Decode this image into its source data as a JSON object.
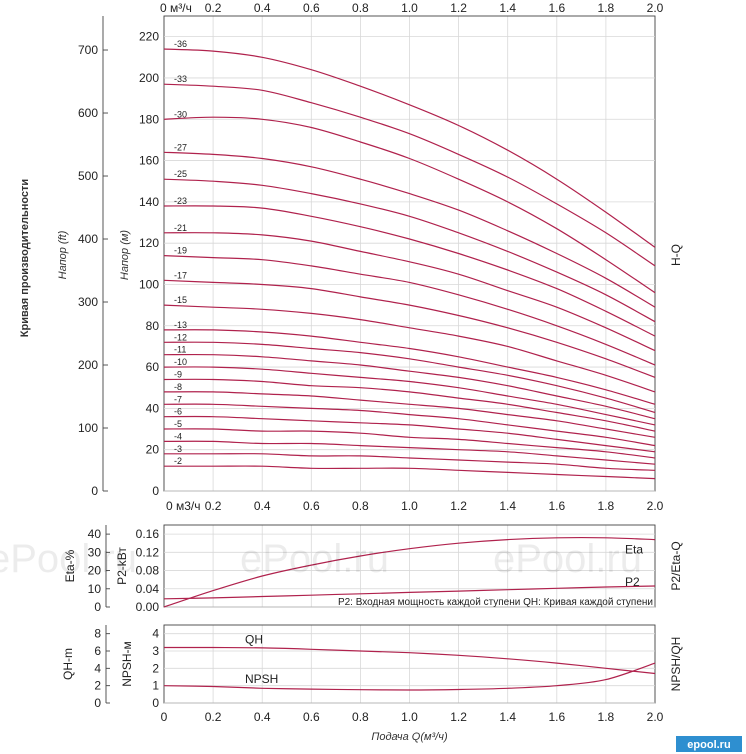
{
  "watermark": {
    "text": "ePool.ru",
    "logo": "epool.ru"
  },
  "chart_data": [
    {
      "type": "line",
      "name": "H-Q",
      "side_label": "H-Q",
      "xlim": [
        0,
        2.0
      ],
      "x_ticks": [
        "0.2",
        "0.4",
        "0.6",
        "0.8",
        "1.0",
        "1.2",
        "1.4",
        "1.6",
        "1.8",
        "2.0"
      ],
      "top_axis_zero_label": "0 м³/ч",
      "bottom_axis_zero_label": "0 м3/ч",
      "ylim": [
        0,
        230
      ],
      "y_ticks": [
        0,
        20,
        40,
        60,
        80,
        100,
        120,
        140,
        160,
        180,
        200,
        220
      ],
      "ylabel": "Напор (м)",
      "ylim_ft": [
        0,
        754
      ],
      "y_ticks_ft": [
        0,
        100,
        200,
        300,
        400,
        500,
        600,
        700
      ],
      "ylabel_ft": "Напор (ft)",
      "left_title": "Кривая производительности",
      "x": [
        0,
        0.2,
        0.4,
        0.6,
        0.8,
        1.0,
        1.2,
        1.4,
        1.6,
        1.8,
        2.0
      ],
      "series": [
        {
          "name": "-36",
          "values": [
            214,
            213,
            210,
            204,
            196,
            187,
            177,
            165,
            151,
            135,
            118
          ]
        },
        {
          "name": "-33",
          "values": [
            197,
            196,
            194,
            188,
            181,
            173,
            163,
            152,
            139,
            125,
            109
          ]
        },
        {
          "name": "-30",
          "values": [
            180,
            181,
            180,
            176,
            169,
            161,
            151,
            140,
            127,
            112,
            96
          ]
        },
        {
          "name": "-27",
          "values": [
            164,
            163,
            161,
            157,
            151,
            144,
            136,
            126,
            115,
            103,
            89
          ]
        },
        {
          "name": "-25",
          "values": [
            151,
            150,
            148,
            144,
            139,
            133,
            125,
            116,
            106,
            95,
            82
          ]
        },
        {
          "name": "-23",
          "values": [
            138,
            138,
            137,
            133,
            128,
            122,
            115,
            107,
            98,
            87,
            75
          ]
        },
        {
          "name": "-21",
          "values": [
            125,
            125,
            124,
            121,
            116,
            111,
            105,
            97,
            89,
            79,
            68
          ]
        },
        {
          "name": "-19",
          "values": [
            114,
            113,
            112,
            109,
            105,
            101,
            95,
            88,
            80,
            71,
            61
          ]
        },
        {
          "name": "-17",
          "values": [
            102,
            101,
            100,
            98,
            94,
            90,
            85,
            79,
            72,
            64,
            55
          ]
        },
        {
          "name": "-15",
          "values": [
            90,
            89,
            88,
            86,
            83,
            79,
            75,
            70,
            63,
            56,
            48
          ]
        },
        {
          "name": "-13",
          "values": [
            78,
            78,
            77,
            75,
            72,
            69,
            65,
            60,
            55,
            49,
            42
          ]
        },
        {
          "name": "-12",
          "values": [
            72,
            72,
            71,
            69,
            67,
            64,
            60,
            56,
            51,
            45,
            38
          ]
        },
        {
          "name": "-11",
          "values": [
            66,
            66,
            65,
            63,
            61,
            58,
            55,
            51,
            46,
            41,
            35
          ]
        },
        {
          "name": "-10",
          "values": [
            60,
            60,
            59,
            57,
            55,
            53,
            50,
            46,
            42,
            37,
            32
          ]
        },
        {
          "name": "-9",
          "values": [
            54,
            54,
            53,
            51,
            50,
            48,
            45,
            42,
            38,
            34,
            29
          ]
        },
        {
          "name": "-8",
          "values": [
            48,
            48,
            47,
            46,
            44,
            42,
            40,
            37,
            34,
            30,
            26
          ]
        },
        {
          "name": "-7",
          "values": [
            42,
            42,
            41,
            40,
            39,
            37,
            35,
            32,
            29,
            26,
            22
          ]
        },
        {
          "name": "-6",
          "values": [
            36,
            36,
            35,
            34,
            33,
            32,
            30,
            28,
            25,
            22,
            19
          ]
        },
        {
          "name": "-5",
          "values": [
            30,
            30,
            29,
            29,
            28,
            26,
            25,
            23,
            21,
            19,
            16
          ]
        },
        {
          "name": "-4",
          "values": [
            24,
            24,
            23,
            23,
            22,
            21,
            20,
            19,
            17,
            15,
            13
          ]
        },
        {
          "name": "-3",
          "values": [
            18,
            18,
            18,
            17,
            17,
            16,
            15,
            14,
            13,
            11,
            10
          ]
        },
        {
          "name": "-2",
          "values": [
            12,
            12,
            12,
            11,
            11,
            11,
            10,
            9,
            8,
            7,
            6
          ]
        }
      ]
    },
    {
      "type": "line",
      "name": "P2/Eta-Q",
      "side_label": "P2/Eta-Q",
      "xlim": [
        0,
        2.0
      ],
      "y_ticks_p2": [
        "0.00",
        "0.04",
        "0.08",
        "0.12",
        "0.16"
      ],
      "ylim_p2": [
        0,
        0.18
      ],
      "ylabel_p2": "P2-kВт",
      "y_ticks_eta": [
        0,
        10,
        20,
        30,
        40
      ],
      "ylim_eta": [
        0,
        45
      ],
      "ylabel_eta": "Eta-%",
      "note": "P2: Входная мощность каждой ступени QH: Кривая каждой ступени",
      "x": [
        0,
        0.2,
        0.4,
        0.6,
        0.8,
        1.0,
        1.2,
        1.4,
        1.6,
        1.8,
        2.0
      ],
      "series": [
        {
          "name": "Eta",
          "axis": "eta",
          "values": [
            0,
            9,
            17,
            23,
            28,
            32,
            35,
            37,
            38,
            38,
            37
          ]
        },
        {
          "name": "P2",
          "axis": "p2",
          "values": [
            0.018,
            0.02,
            0.023,
            0.026,
            0.029,
            0.032,
            0.035,
            0.038,
            0.041,
            0.044,
            0.046
          ]
        }
      ]
    },
    {
      "type": "line",
      "name": "NPSH/QH",
      "side_label": "NPSH/QH",
      "xlim": [
        0,
        2.0
      ],
      "x_ticks": [
        "0",
        "0.2",
        "0.4",
        "0.6",
        "0.8",
        "1.0",
        "1.2",
        "1.4",
        "1.6",
        "1.8",
        "2.0"
      ],
      "xlabel": "Подача Q(м³/ч)",
      "y_ticks_npsh": [
        0,
        1,
        2,
        3,
        4
      ],
      "ylim_npsh": [
        0,
        4.5
      ],
      "ylabel_npsh": "NPSH-м",
      "y_ticks_qh": [
        0,
        2,
        4,
        6,
        8
      ],
      "ylim_qh": [
        0,
        9
      ],
      "ylabel_qh": "QH-m",
      "x": [
        0,
        0.2,
        0.4,
        0.6,
        0.8,
        1.0,
        1.2,
        1.4,
        1.6,
        1.8,
        2.0
      ],
      "series": [
        {
          "name": "QH",
          "axis": "npsh",
          "values": [
            3.2,
            3.2,
            3.18,
            3.1,
            3.0,
            2.9,
            2.75,
            2.55,
            2.3,
            2.0,
            1.7
          ]
        },
        {
          "name": "NPSH",
          "axis": "npsh",
          "values": [
            1.0,
            0.95,
            0.85,
            0.8,
            0.77,
            0.75,
            0.78,
            0.85,
            1.0,
            1.35,
            2.3
          ]
        }
      ]
    }
  ]
}
